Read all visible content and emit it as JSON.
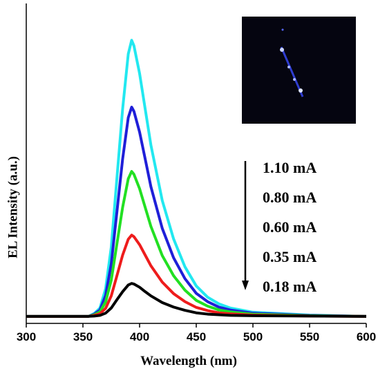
{
  "chart_data": {
    "type": "line",
    "x_label": "Wavelength (nm)",
    "y_label": "EL Intensity (a.u.)",
    "xlim": [
      300,
      600
    ],
    "xticks": [
      300,
      350,
      400,
      450,
      500,
      550,
      600
    ],
    "ylim": [
      0,
      100
    ],
    "x": [
      300,
      355,
      360,
      365,
      370,
      375,
      380,
      385,
      390,
      393,
      395,
      400,
      405,
      410,
      420,
      430,
      440,
      450,
      460,
      470,
      480,
      500,
      550,
      600
    ],
    "series": [
      {
        "name": "1.10 mA",
        "color": "#22e8f0",
        "values": [
          2.2,
          2.2,
          3.1,
          4.8,
          10.8,
          23.8,
          45.4,
          66.9,
          84.2,
          88.5,
          86.8,
          78.1,
          66.9,
          55.7,
          38.4,
          26.4,
          17.7,
          11.7,
          8.2,
          6.1,
          4.8,
          3.5,
          2.6,
          2.2
        ]
      },
      {
        "name": "0.80 mA",
        "color": "#1f1fd8",
        "values": [
          2.2,
          2.2,
          2.9,
          4.2,
          8.7,
          18.6,
          34.9,
          51.3,
          64.3,
          67.6,
          66.3,
          59.8,
          51.3,
          42.7,
          29.7,
          20.5,
          14.0,
          9.4,
          6.8,
          5.1,
          4.2,
          3.2,
          2.5,
          2.2
        ]
      },
      {
        "name": "0.60 mA",
        "color": "#22e022",
        "values": [
          2.2,
          2.2,
          2.7,
          3.6,
          6.7,
          13.5,
          24.9,
          36.2,
          45.2,
          47.5,
          46.6,
          42.1,
          36.2,
          30.3,
          21.2,
          14.9,
          10.4,
          7.2,
          5.4,
          4.2,
          3.6,
          2.9,
          2.4,
          2.2
        ]
      },
      {
        "name": "0.35 mA",
        "color": "#ee1c1c",
        "values": [
          2.2,
          2.2,
          2.5,
          3.0,
          4.7,
          8.6,
          14.9,
          21.3,
          26.3,
          27.6,
          27.1,
          24.6,
          21.3,
          18.0,
          12.9,
          9.3,
          6.8,
          5.0,
          4.0,
          3.3,
          3.0,
          2.6,
          2.3,
          2.2
        ]
      },
      {
        "name": "0.18 mA",
        "color": "#000000",
        "values": [
          2.2,
          2.2,
          2.3,
          2.5,
          3.2,
          4.8,
          7.4,
          9.9,
          12.0,
          12.5,
          12.3,
          11.3,
          9.9,
          8.6,
          6.5,
          5.1,
          4.1,
          3.3,
          2.9,
          2.7,
          2.5,
          2.4,
          2.3,
          2.2
        ]
      }
    ]
  }
}
